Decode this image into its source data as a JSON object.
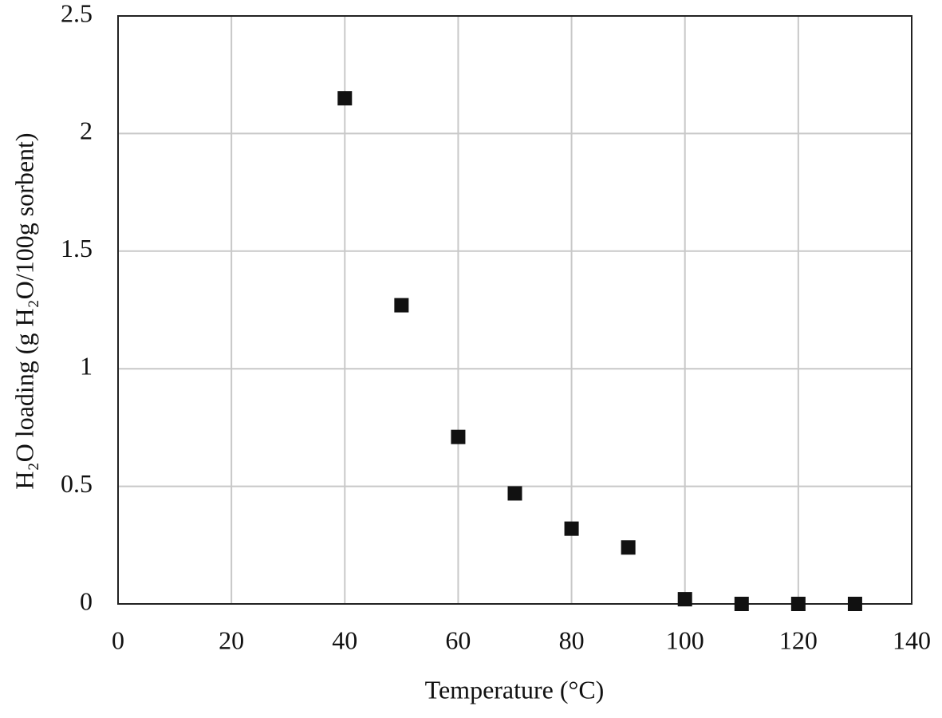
{
  "chart_data": {
    "type": "scatter",
    "x_label": "Temperature (°C)",
    "y_label": "H₂O loading  (g H₂O/100g sorbent)",
    "series": [
      {
        "color": "#111111",
        "x": [
          40,
          50,
          60,
          70,
          80,
          90,
          100,
          110,
          120,
          130
        ],
        "values": [
          2.15,
          1.27,
          0.71,
          0.47,
          0.32,
          0.24,
          0.02,
          0,
          0,
          0
        ]
      }
    ],
    "xlim": [
      0,
      140
    ],
    "xticks": [
      0,
      20,
      40,
      60,
      80,
      100,
      120,
      140
    ],
    "ylim": [
      0,
      2.5
    ],
    "yticks": [
      0,
      0.5,
      1,
      1.5,
      2,
      2.5
    ],
    "grid": true
  }
}
